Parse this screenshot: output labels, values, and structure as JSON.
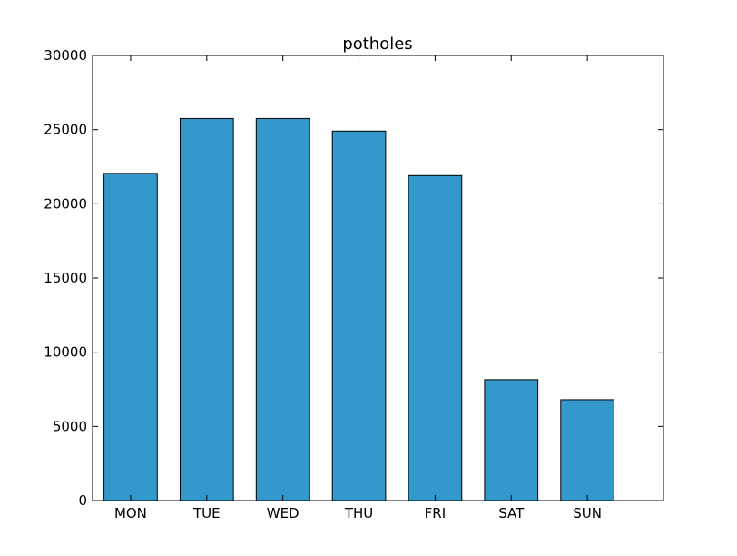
{
  "chart_data": {
    "type": "bar",
    "title": "potholes",
    "xlabel": "",
    "ylabel": "",
    "categories": [
      "MON",
      "TUE",
      "WED",
      "THU",
      "FRI",
      "SAT",
      "SUN"
    ],
    "values": [
      22050,
      25750,
      25750,
      24900,
      21900,
      8150,
      6800
    ],
    "ylim": [
      0,
      30000
    ],
    "yticks": [
      0,
      5000,
      10000,
      15000,
      20000,
      25000,
      30000
    ],
    "grid": false,
    "bar_color": "#3399cc",
    "edge_color": "#000000"
  }
}
